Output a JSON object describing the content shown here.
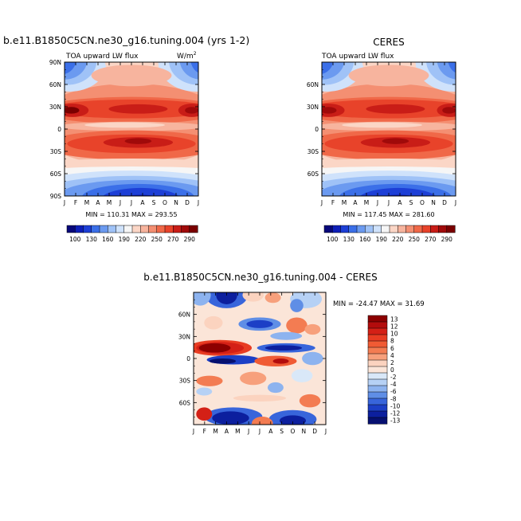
{
  "panels": [
    {
      "id": "model",
      "title": "b.e11.B1850C5CN.ne30_g16.tuning.004 (yrs 1-2)",
      "subtitle": "TOA upward LW flux",
      "units": "W/m",
      "units_sup": "2",
      "stats": "MIN = 110.31 MAX = 293.55"
    },
    {
      "id": "ceres",
      "title": "CERES",
      "subtitle": "TOA upward LW flux",
      "units": "",
      "units_sup": "",
      "stats": "MIN = 117.45 MAX = 281.60"
    },
    {
      "id": "diff",
      "title": "b.e11.B1850C5CN.ne30_g16.tuning.004 - CERES",
      "subtitle": "",
      "units": "",
      "units_sup": "",
      "stats": "MIN = -24.47 MAX =  31.69"
    }
  ],
  "chart_data": [
    {
      "type": "heatmap",
      "name": "model",
      "x": [
        "J",
        "F",
        "M",
        "A",
        "M",
        "J",
        "J",
        "A",
        "S",
        "O",
        "N",
        "D",
        "J"
      ],
      "y_ticks_top": [
        "90N",
        "60N",
        "30N",
        "0",
        "30S",
        "60S",
        "90S"
      ],
      "ylim": [
        -90,
        90
      ],
      "colorbar_labels": [
        "100",
        "130",
        "160",
        "190",
        "220",
        "250",
        "270",
        "290"
      ],
      "colorbar_colors": [
        "#08087a",
        "#0e1fb8",
        "#1d3fd6",
        "#3b6fe8",
        "#6b9af0",
        "#9fc2f7",
        "#cfe2fb",
        "#f6f6f6",
        "#fbd6c6",
        "#f7b49e",
        "#f48f72",
        "#f06848",
        "#e8432a",
        "#c91d17",
        "#a00a0a",
        "#7a0000"
      ],
      "min": 110.31,
      "max": 293.55
    },
    {
      "type": "heatmap",
      "name": "ceres",
      "x": [
        "J",
        "F",
        "M",
        "A",
        "M",
        "J",
        "J",
        "A",
        "S",
        "O",
        "N",
        "D",
        "J"
      ],
      "y_ticks_top": [
        "60N",
        "30N",
        "0",
        "30S",
        "60S"
      ],
      "ylim": [
        -90,
        90
      ],
      "colorbar_labels": [
        "100",
        "130",
        "160",
        "190",
        "220",
        "250",
        "270",
        "290"
      ],
      "colorbar_colors": [
        "#08087a",
        "#0e1fb8",
        "#1d3fd6",
        "#3b6fe8",
        "#6b9af0",
        "#9fc2f7",
        "#cfe2fb",
        "#f6f6f6",
        "#fbd6c6",
        "#f7b49e",
        "#f48f72",
        "#f06848",
        "#e8432a",
        "#c91d17",
        "#a00a0a",
        "#7a0000"
      ],
      "min": 117.45,
      "max": 281.6
    },
    {
      "type": "heatmap",
      "name": "difference",
      "x": [
        "J",
        "F",
        "M",
        "A",
        "M",
        "J",
        "J",
        "A",
        "S",
        "O",
        "N",
        "D",
        "J"
      ],
      "y_ticks_top": [
        "60N",
        "30N",
        "0",
        "30S",
        "60S"
      ],
      "ylim": [
        -90,
        90
      ],
      "colorbar_labels": [
        "13",
        "12",
        "10",
        "8",
        "6",
        "4",
        "2",
        "0",
        "-2",
        "-4",
        "-6",
        "-8",
        "-10",
        "-12",
        "-13"
      ],
      "colorbar_colors": [
        "#8c0000",
        "#b30c0c",
        "#d42016",
        "#e83c22",
        "#f05b34",
        "#f37c52",
        "#f7a07c",
        "#fbd3bf",
        "#fbe5d8",
        "#d9e8f8",
        "#b6d1f5",
        "#8db3ef",
        "#5f8ee6",
        "#3865db",
        "#1c3fc6",
        "#0c1f9e",
        "#061070"
      ],
      "min": -24.47,
      "max": 31.69
    }
  ]
}
